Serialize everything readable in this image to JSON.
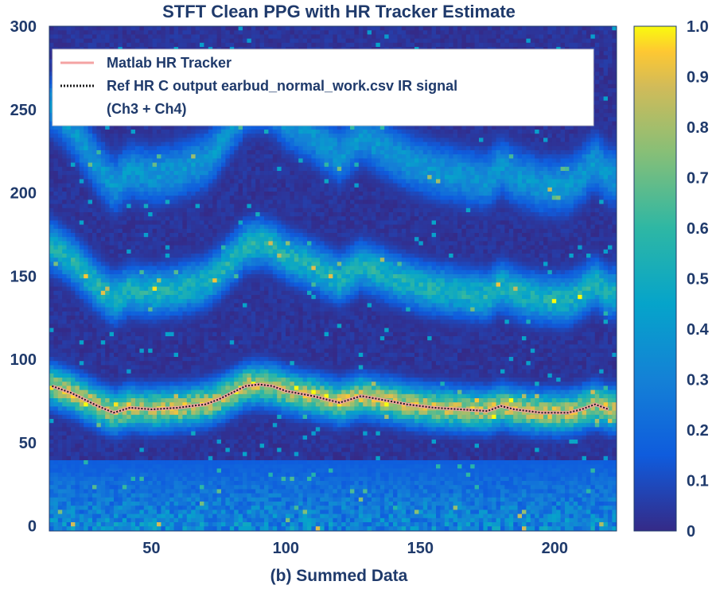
{
  "chart_data": {
    "type": "heatmap",
    "title": "STFT Clean PPG with HR Tracker Estimate",
    "xlabel": "(b) Summed Data",
    "ylabel": "",
    "xlim": [
      12,
      223
    ],
    "ylim": [
      -3,
      300
    ],
    "x_ticks": [
      50,
      100,
      150,
      200
    ],
    "y_ticks": [
      0,
      50,
      100,
      150,
      200,
      250,
      300
    ],
    "colorbar": {
      "range": [
        0,
        1
      ],
      "ticks": [
        "1.0",
        "0.9",
        "0.8",
        "0.7",
        "0.6",
        "0.5",
        "0.4",
        "0.3",
        "0.2",
        "0.1",
        "0"
      ],
      "colormap": "parula"
    },
    "legend": {
      "placement": "top",
      "entries": [
        {
          "label": "Matlab HR Tracker",
          "color": "#f4a3a3",
          "style": "solid"
        },
        {
          "label": "Ref HR C output earbud_normal_work.csv IR signal",
          "label_line2": "(Ch3 + Ch4)",
          "color": "#1a1a1a",
          "style": "dotted"
        }
      ]
    },
    "series": [
      {
        "name": "Matlab HR Tracker",
        "x": [
          13,
          20,
          30,
          36,
          42,
          50,
          60,
          70,
          75,
          80,
          85,
          90,
          95,
          100,
          110,
          120,
          128,
          135,
          145,
          155,
          165,
          175,
          180,
          185,
          195,
          205,
          210,
          215,
          220
        ],
        "y": [
          84,
          80,
          72,
          68,
          71,
          70,
          71,
          73,
          76,
          80,
          84,
          85,
          84,
          81,
          78,
          74,
          78,
          76,
          73,
          71,
          70,
          69,
          72,
          70,
          68,
          68,
          70,
          73,
          70
        ]
      },
      {
        "name": "Ref HR C output earbud_normal_work.csv IR signal (Ch3 + Ch4)",
        "x": [
          13,
          20,
          30,
          36,
          42,
          50,
          60,
          70,
          75,
          80,
          85,
          90,
          95,
          100,
          110,
          120,
          128,
          135,
          145,
          155,
          165,
          175,
          180,
          185,
          195,
          205,
          210,
          215,
          220
        ],
        "y": [
          84,
          80,
          72,
          68,
          71,
          70,
          71,
          73,
          76,
          80,
          84,
          85,
          84,
          81,
          78,
          74,
          78,
          76,
          73,
          71,
          70,
          69,
          72,
          70,
          68,
          68,
          70,
          73,
          70
        ]
      }
    ],
    "intensity_bands": {
      "frequency_centers": [
        75,
        150,
        225
      ],
      "frequency_widths": [
        11,
        13,
        15
      ],
      "peak_intensity": [
        0.9,
        0.58,
        0.42
      ]
    }
  }
}
